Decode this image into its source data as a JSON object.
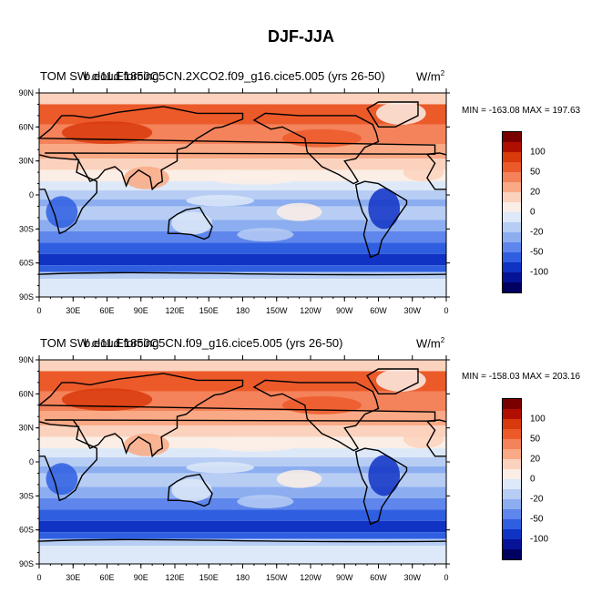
{
  "title": "DJF-JJA",
  "panels": [
    {
      "title": "TOM SW cloud forcing",
      "title_overlay": "b.e11.E1850C5CN.2XCO2.f09_g16.cice5.005 (yrs 26-50)",
      "units_base": "W/m",
      "units_exp": "2",
      "min": -163.08,
      "max": 197.63,
      "minmax_text": "MIN = -163.08 MAX = 197.63"
    },
    {
      "title": "TOM SW cloud forcing",
      "title_overlay": "b.e11.E1850C5CN.f09_g16.cice5.005 (yrs 26-50)",
      "units_base": "W/m",
      "units_exp": "2",
      "min": -158.03,
      "max": 203.16,
      "minmax_text": "MIN = -158.03 MAX = 203.16"
    }
  ],
  "lat_labels": [
    "90N",
    "60N",
    "30N",
    "0",
    "30S",
    "60S",
    "90S"
  ],
  "lon_labels": [
    "0",
    "30E",
    "60E",
    "90E",
    "120E",
    "150E",
    "180",
    "150W",
    "120W",
    "90W",
    "60W",
    "30W",
    "0"
  ],
  "colorbar": {
    "colors": [
      "#7a0000",
      "#b00f00",
      "#d83a0c",
      "#ec5a2a",
      "#f4825a",
      "#f9a985",
      "#fbd2bd",
      "#fbeee6",
      "#dde8f8",
      "#b7cdf4",
      "#8caef0",
      "#5e86ec",
      "#2f5fe0",
      "#1033c4",
      "#061396",
      "#000060"
    ],
    "tick_labels": [
      "100",
      "50",
      "20",
      "0",
      "-20",
      "-50",
      "-100"
    ]
  },
  "chart_data": [
    {
      "type": "heatmap",
      "title": "TOM SW cloud forcing",
      "subtitle": "b.e11.E1850C5CN.2XCO2.f09_g16.cice5.005 (yrs 26-50)",
      "units": "W/m^2",
      "x_ticks": [
        "0",
        "30E",
        "60E",
        "90E",
        "120E",
        "150E",
        "180",
        "150W",
        "120W",
        "90W",
        "60W",
        "30W",
        "0"
      ],
      "y_ticks": [
        "90N",
        "60N",
        "30N",
        "0",
        "30S",
        "60S",
        "90S"
      ],
      "colorbar_ticks": [
        100,
        50,
        20,
        0,
        -20,
        -50,
        -100
      ],
      "min": -163.08,
      "max": 197.63,
      "season_difference": "DJF-JJA"
    },
    {
      "type": "heatmap",
      "title": "TOM SW cloud forcing",
      "subtitle": "b.e11.E1850C5CN.f09_g16.cice5.005 (yrs 26-50)",
      "units": "W/m^2",
      "x_ticks": [
        "0",
        "30E",
        "60E",
        "90E",
        "120E",
        "150E",
        "180",
        "150W",
        "120W",
        "90W",
        "60W",
        "30W",
        "0"
      ],
      "y_ticks": [
        "90N",
        "60N",
        "30N",
        "0",
        "30S",
        "60S",
        "90S"
      ],
      "colorbar_ticks": [
        100,
        50,
        20,
        0,
        -20,
        -50,
        -100
      ],
      "min": -158.03,
      "max": 203.16,
      "season_difference": "DJF-JJA"
    }
  ]
}
